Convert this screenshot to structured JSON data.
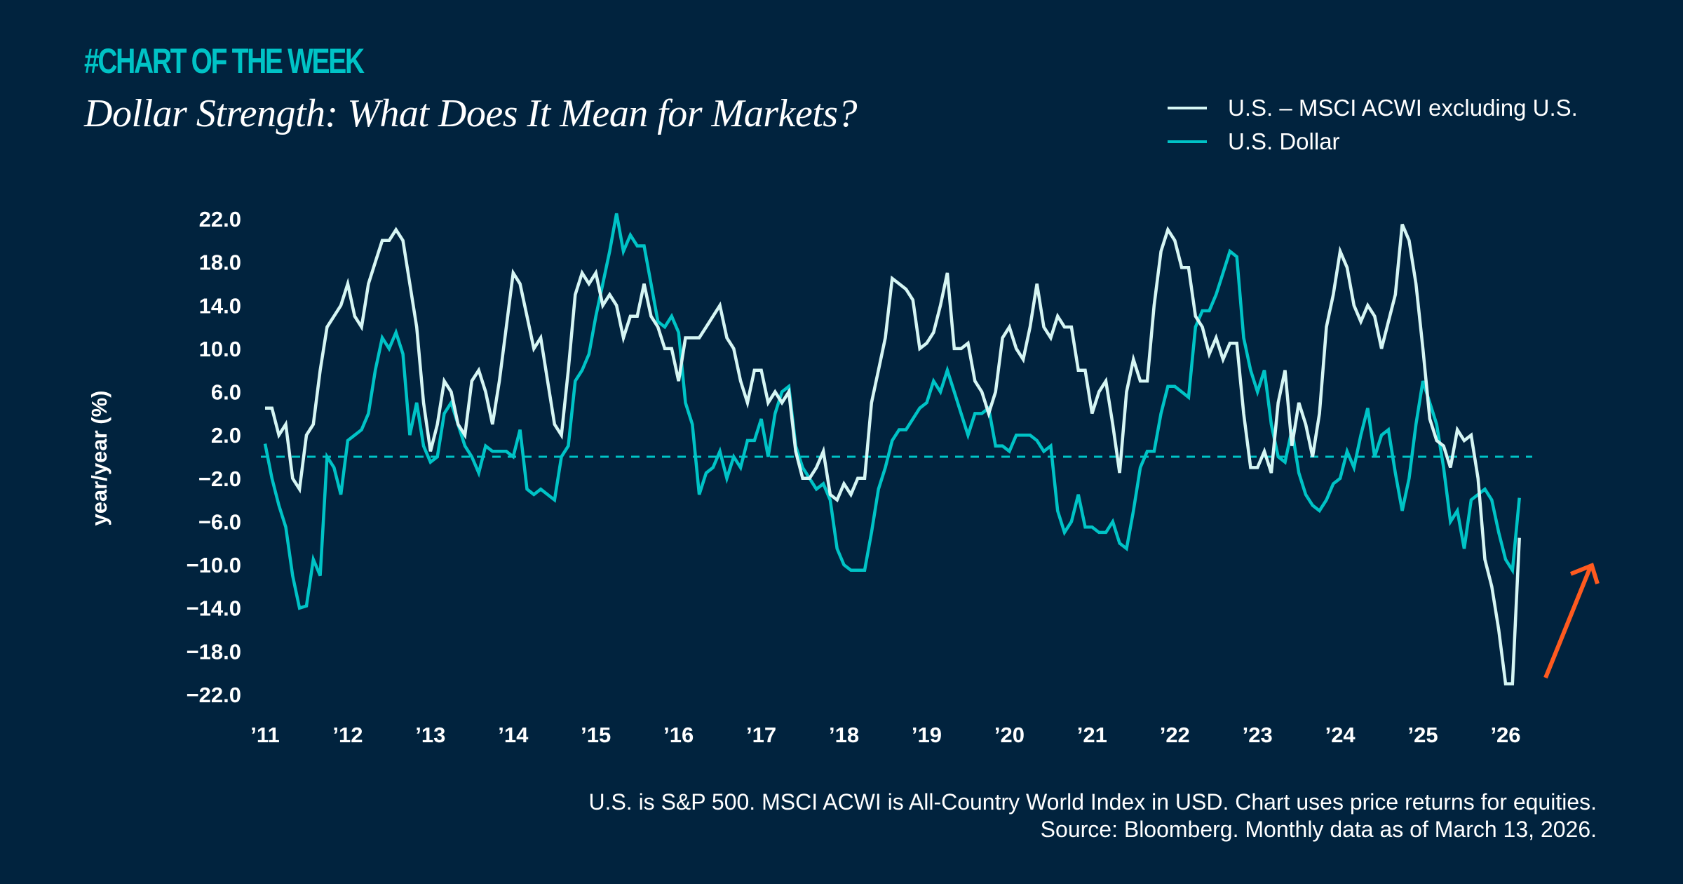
{
  "header": {
    "kicker": "#CHART OF THE WEEK",
    "title": "Dollar Strength: What Does It Mean for Markets?"
  },
  "legend": [
    {
      "label": "U.S. – MSCI ACWI excluding U.S.",
      "color": "#d6f6f4"
    },
    {
      "label": "U.S. Dollar",
      "color": "#00c3c6"
    }
  ],
  "footnote": {
    "line1": "U.S. is S&P 500. MSCI ACWI is All-Country World Index in USD. Chart uses price returns for equities.",
    "line2": "Source: Bloomberg. Monthly data as of March 13, 2026."
  },
  "colors": {
    "background": "#01233e",
    "accent": "#00c3c6",
    "arrow": "#ff5a1f"
  },
  "chart_data": {
    "type": "line",
    "ylabel": "year/year (%)",
    "ylim": [
      -22,
      22
    ],
    "yticks": [
      "22.0",
      "18.0",
      "14.0",
      "10.0",
      "6.0",
      "2.0",
      "−2.0",
      "−6.0",
      "−10.0",
      "−14.0",
      "−18.0",
      "−22.0"
    ],
    "ytick_values": [
      22,
      18,
      14,
      10,
      6,
      2,
      -2,
      -6,
      -10,
      -14,
      -18,
      -22
    ],
    "xticks": [
      "’11",
      "’12",
      "’13",
      "’14",
      "’15",
      "’16",
      "’17",
      "’18",
      "’19",
      "’20",
      "’21",
      "’22",
      "’23",
      "’24",
      "’25",
      "’26"
    ],
    "x_start": "2011-01",
    "frequency": "monthly",
    "reference_line": {
      "y": 0,
      "style": "dashed"
    },
    "annotation": "upward arrow",
    "grid": false,
    "legend_position": "top-right",
    "series": [
      {
        "name": "U.S. – MSCI ACWI excluding U.S.",
        "values": [
          4.5,
          4.5,
          2,
          3,
          -2,
          -3,
          2,
          3,
          8,
          12,
          13,
          14,
          16,
          13,
          12,
          16,
          18,
          20,
          20,
          21,
          20,
          16,
          12,
          5,
          0.5,
          3,
          7,
          6,
          3,
          2,
          7,
          8,
          6,
          3,
          7,
          12,
          17,
          16,
          13,
          10,
          11,
          7,
          3,
          2,
          8,
          15,
          17,
          16,
          17,
          14,
          15,
          14,
          11,
          13,
          13,
          16,
          13,
          12,
          10,
          10,
          7,
          11,
          11,
          11,
          12,
          13,
          14,
          11,
          10,
          7,
          5,
          8,
          8,
          5,
          6,
          5,
          6,
          0.5,
          -2,
          -2,
          -1,
          0.5,
          -3.5,
          -4,
          -2.5,
          -3.5,
          -2,
          -2,
          5,
          8,
          11,
          16.5,
          16,
          15.5,
          14.5,
          10,
          10.5,
          11.5,
          14,
          17,
          10,
          10,
          10.5,
          7,
          6,
          4,
          6,
          11,
          12,
          10,
          9,
          12,
          16,
          12,
          11,
          13,
          12,
          12,
          8,
          8,
          4,
          6,
          7,
          3,
          -1.5,
          6,
          9,
          7,
          7,
          14,
          19,
          21,
          20,
          17.5,
          17.5,
          13,
          12,
          9.5,
          11,
          9,
          10.5,
          10.5,
          4,
          -1,
          -1,
          0.5,
          -1.5,
          5,
          8,
          1,
          5,
          3,
          0,
          4,
          12,
          15,
          19,
          17.5,
          14,
          12.5,
          14,
          13,
          10,
          12.5,
          15,
          21.5,
          20,
          16,
          10,
          3.5,
          1.5,
          1,
          -1,
          2.5,
          1.5,
          2,
          -2,
          -9.5,
          -12,
          -16,
          -21,
          -21,
          -7.5
        ]
      },
      {
        "name": "U.S. Dollar",
        "values": [
          1.2,
          -2,
          -4.5,
          -6.5,
          -11,
          -14,
          -13.8,
          -9.5,
          -11,
          0,
          -1,
          -3.5,
          1.5,
          2,
          2.5,
          4,
          8,
          11,
          10,
          11.5,
          9.5,
          2,
          5,
          1,
          -0.5,
          0,
          4,
          5,
          3,
          1,
          0,
          -1.5,
          1,
          0.5,
          0.5,
          0.5,
          0,
          2.5,
          -3,
          -3.5,
          -3,
          -3.5,
          -4,
          0,
          1,
          7,
          8,
          9.5,
          13,
          16,
          19,
          22.5,
          19,
          20.5,
          19.5,
          19.5,
          16,
          12.5,
          12,
          13,
          11.5,
          5,
          3,
          -3.5,
          -1.5,
          -1,
          0.5,
          -2,
          0,
          -1,
          1.5,
          1.5,
          3.5,
          0,
          4,
          6,
          6.5,
          1,
          -1,
          -2,
          -3,
          -2.5,
          -4,
          -8.5,
          -10,
          -10.5,
          -10.5,
          -10.5,
          -7,
          -3,
          -1,
          1.5,
          2.5,
          2.5,
          3.5,
          4.5,
          5,
          7,
          6,
          8,
          6,
          4,
          2,
          4,
          4,
          4.5,
          1,
          1,
          0.5,
          2,
          2,
          2,
          1.5,
          0.5,
          1,
          -5,
          -7,
          -6,
          -3.5,
          -6.5,
          -6.5,
          -7,
          -7,
          -6,
          -8,
          -8.5,
          -5,
          -1,
          0.5,
          0.5,
          4,
          6.5,
          6.5,
          6,
          5.5,
          12,
          13.5,
          13.5,
          15,
          17,
          19,
          18.5,
          11,
          8,
          6,
          8,
          3,
          0,
          -0.5,
          2.5,
          -1.5,
          -3.5,
          -4.5,
          -5,
          -4,
          -2.5,
          -2,
          0.5,
          -1,
          2,
          4.5,
          0,
          2,
          2.5,
          -1.5,
          -5,
          -2,
          3,
          7,
          5,
          3,
          -1,
          -6,
          -5,
          -8.5,
          -4,
          -3.5,
          -3,
          -4,
          -7,
          -9.5,
          -10.5,
          -3.8
        ]
      }
    ]
  }
}
